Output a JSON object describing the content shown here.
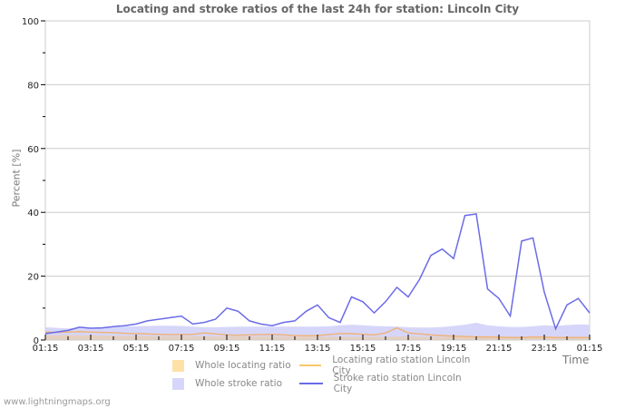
{
  "title": "Locating and stroke ratios of the last 24h for station: Lincoln City",
  "y_axis_label": "Percent   [%]",
  "x_axis_label": "Time",
  "footer": "www.lightningmaps.org",
  "legend": {
    "whole_locating": {
      "label": "Whole locating ratio",
      "color": "#fde1a6"
    },
    "station_locating": {
      "label": "Locating ratio station Lincoln City",
      "color": "#f9c86a"
    },
    "whole_stroke": {
      "label": "Whole stroke ratio",
      "color": "#d6d6fa"
    },
    "station_stroke": {
      "label": "Stroke ratio station Lincoln City",
      "color": "#6b6be8"
    }
  },
  "chart_data": {
    "type": "line",
    "title": "Locating and stroke ratios of the last 24h for station: Lincoln City",
    "xlabel": "Time",
    "ylabel": "Percent [%]",
    "ylim": [
      0,
      100
    ],
    "yticks": [
      0,
      20,
      40,
      60,
      80,
      100
    ],
    "xticks": [
      "01:15",
      "03:15",
      "05:15",
      "07:15",
      "09:15",
      "11:15",
      "13:15",
      "15:15",
      "17:15",
      "19:15",
      "21:15",
      "23:15",
      "01:15"
    ],
    "grid": true,
    "legend_position": "bottom",
    "x_hours": [
      0,
      0.5,
      1,
      1.5,
      2,
      2.5,
      3,
      3.5,
      4,
      4.5,
      5,
      5.5,
      6,
      6.5,
      7,
      7.5,
      8,
      8.5,
      9,
      9.5,
      10,
      10.5,
      11,
      11.5,
      12,
      12.5,
      13,
      13.5,
      14,
      14.5,
      15,
      15.5,
      16,
      16.5,
      17,
      17.5,
      18,
      18.5,
      19,
      19.5,
      20,
      20.5,
      21,
      21.5,
      22,
      22.5,
      23,
      23.5,
      24
    ],
    "series": [
      {
        "name": "Stroke ratio station Lincoln City",
        "kind": "line",
        "color": "#6b6be8",
        "values": [
          2,
          2.5,
          3,
          4,
          3.7,
          3.8,
          4.2,
          4.5,
          5,
          6,
          6.5,
          7,
          7.5,
          5,
          5.5,
          6.5,
          10,
          9,
          6,
          5,
          4.5,
          5.5,
          6,
          9,
          11,
          7,
          5.5,
          13.5,
          12,
          8.5,
          12,
          16.5,
          13.5,
          19,
          26.5,
          28.5,
          25.5,
          39,
          39.5,
          16,
          13,
          7.5,
          31,
          32,
          15,
          3.5,
          11,
          13,
          8.5
        ]
      },
      {
        "name": "Whole stroke ratio",
        "kind": "area",
        "color": "#d6d6fa",
        "values": [
          4,
          3.8,
          3.6,
          3.8,
          3.7,
          3.8,
          4,
          4.2,
          4.3,
          4.4,
          4.5,
          4.5,
          4.4,
          4.2,
          4,
          4,
          4.1,
          4.2,
          4.2,
          4.2,
          4.2,
          4.2,
          4.2,
          4.2,
          4.2,
          4.3,
          4.6,
          4.8,
          4.6,
          4.4,
          4.3,
          4.2,
          4,
          3.9,
          3.9,
          4.1,
          4.4,
          4.8,
          5.4,
          4.6,
          4.3,
          4.1,
          4.1,
          4.3,
          4.6,
          4.4,
          4.7,
          4.9,
          4.8
        ]
      },
      {
        "name": "Locating ratio station Lincoln City",
        "kind": "line",
        "color": "#f9c86a",
        "values": [
          2.5,
          2.4,
          2.5,
          2.6,
          2.5,
          2.4,
          2.3,
          2.1,
          2,
          1.9,
          1.8,
          1.7,
          1.7,
          1.8,
          2.2,
          1.9,
          1.6,
          1.5,
          1.6,
          1.7,
          1.8,
          1.6,
          1.4,
          1.3,
          1.4,
          1.7,
          2,
          2,
          1.8,
          1.6,
          2.2,
          3.8,
          2.2,
          1.9,
          1.6,
          1.4,
          1.2,
          1.1,
          1,
          0.9,
          0.9,
          0.8,
          0.8,
          0.9,
          0.9,
          0.8,
          0.8,
          0.8,
          0.8
        ]
      },
      {
        "name": "Whole locating ratio",
        "kind": "area",
        "color": "#fde1a6",
        "values": [
          1.5,
          1.5,
          1.5,
          1.5,
          1.5,
          1.4,
          1.4,
          1.3,
          1.3,
          1.3,
          1.2,
          1.2,
          1.2,
          1.2,
          1.2,
          1.1,
          1.1,
          1.1,
          1.1,
          1.1,
          1.1,
          1.1,
          1.0,
          1.0,
          1.0,
          1.0,
          1.0,
          1.0,
          1.0,
          1.0,
          1.0,
          1.1,
          1.1,
          1.0,
          1.0,
          1.0,
          0.9,
          0.9,
          0.9,
          0.9,
          0.9,
          0.8,
          0.8,
          0.8,
          0.8,
          0.8,
          0.8,
          0.8,
          0.8
        ]
      }
    ]
  }
}
